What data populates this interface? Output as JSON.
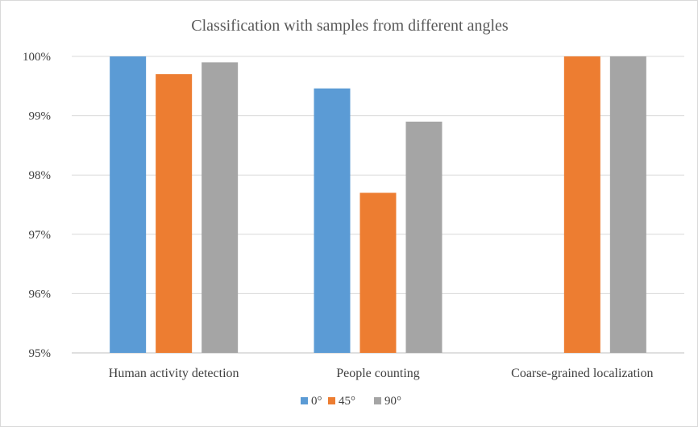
{
  "chart_data": {
    "type": "bar",
    "title": "Classification with samples from different angles",
    "categories": [
      "Human activity detection",
      "People counting",
      "Coarse-grained localization"
    ],
    "series": [
      {
        "name": "0°",
        "color": "#5B9BD5",
        "values": [
          100,
          99.46,
          null
        ]
      },
      {
        "name": "45°",
        "color": "#ED7D31",
        "values": [
          99.7,
          97.7,
          100
        ]
      },
      {
        "name": "90°",
        "color": "#A5A5A5",
        "values": [
          99.9,
          98.9,
          100
        ]
      }
    ],
    "ylim": [
      95,
      100
    ],
    "yticks": [
      95,
      96,
      97,
      98,
      99,
      100
    ],
    "ytick_labels": [
      "95%",
      "96%",
      "97%",
      "98%",
      "99%",
      "100%"
    ],
    "grid": true,
    "legend_position": "bottom"
  }
}
